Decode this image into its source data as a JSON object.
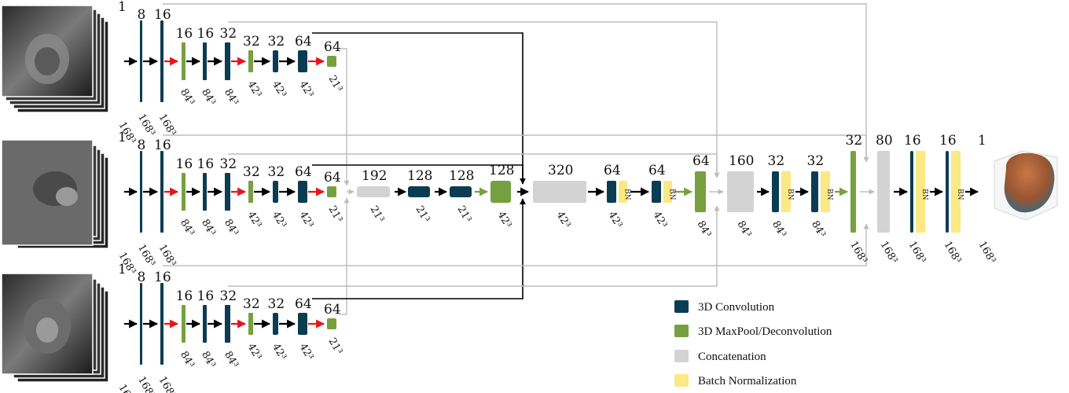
{
  "colors": {
    "conv": "#0b3d52",
    "pool": "#77a040",
    "concat": "#d3d3d3",
    "bn": "#fbe983",
    "arrow": "#000000",
    "arrow_red": "#e8141b",
    "arrow_green": "#77a040",
    "skip_gray": "#bdbdbd"
  },
  "encoder": {
    "channels": [
      "1",
      "8",
      "16",
      "16",
      "16",
      "32",
      "32",
      "32",
      "64",
      "64"
    ],
    "dims": [
      "168³",
      "168³",
      "168³",
      "84³",
      "84³",
      "84³",
      "42³",
      "42³",
      "42³",
      "21³"
    ]
  },
  "middle": {
    "bottleneck_channels": [
      "192",
      "128",
      "128",
      "128"
    ],
    "bottleneck_dims": [
      "21³",
      "21³",
      "21³",
      "42³"
    ],
    "decoder_channels": [
      "320",
      "64",
      "64",
      "64",
      "160",
      "32",
      "32",
      "32",
      "80",
      "16",
      "16",
      "1"
    ],
    "decoder_dims": [
      "42³",
      "42³",
      "42³",
      "84³",
      "84³",
      "84³",
      "84³",
      "168³",
      "168³",
      "168³",
      "168³",
      "168³"
    ],
    "bn_label": "BN"
  },
  "legend": [
    {
      "label": "3D  Convolution",
      "color": "conv"
    },
    {
      "label": "3D  MaxPool/Deconvolution",
      "color": "pool"
    },
    {
      "label": "Concatenation",
      "color": "concat"
    },
    {
      "label": "Batch  Normalization",
      "color": "bn"
    }
  ],
  "images": {
    "input_1": "mri-axial-stack",
    "input_2": "mri-sagittal-stack",
    "input_3": "mri-coronal-stack",
    "output": "3d-prostate-segmentation-surface"
  }
}
